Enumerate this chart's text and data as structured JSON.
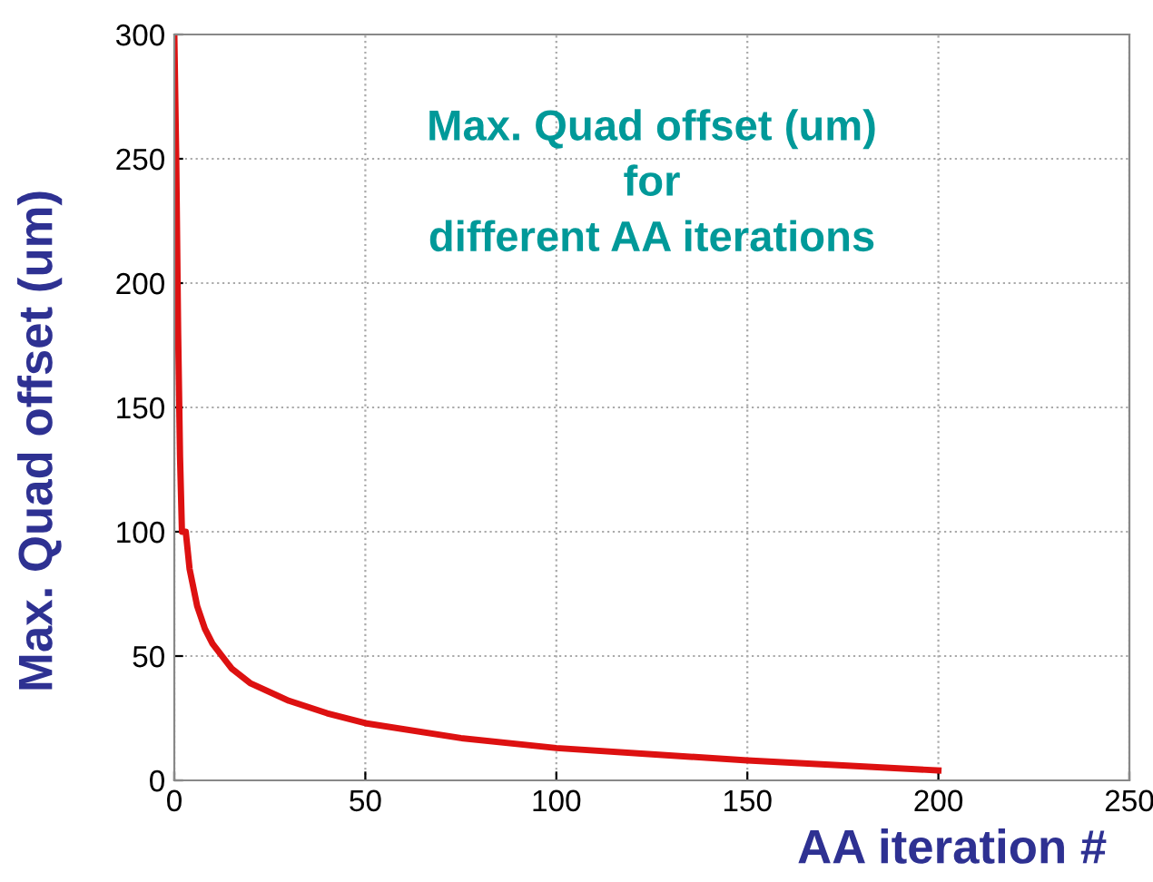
{
  "chart_data": {
    "type": "line",
    "title": "Max. Quad offset (um)\nfor\ndifferent AA iterations",
    "xlabel": "AA iteration #",
    "ylabel": "Max. Quad offset (um)",
    "series": [
      {
        "color": "#dd1111",
        "x": [
          0,
          0.5,
          1,
          1.5,
          2,
          3,
          4,
          6,
          8,
          10,
          15,
          20,
          30,
          40,
          50,
          75,
          100,
          125,
          150,
          175,
          200
        ],
        "values": [
          300,
          250,
          180,
          130,
          100,
          100,
          85,
          70,
          61,
          55,
          45,
          39,
          32,
          27,
          23,
          17,
          13,
          10.5,
          8,
          6,
          4
        ]
      }
    ],
    "xlim": [
      0,
      250
    ],
    "ylim": [
      0,
      300
    ],
    "xticks": [
      0,
      50,
      100,
      150,
      200,
      250
    ],
    "yticks": [
      0,
      50,
      100,
      150,
      200,
      250,
      300
    ],
    "grid": true,
    "marker": "none",
    "line_style": "solid"
  }
}
